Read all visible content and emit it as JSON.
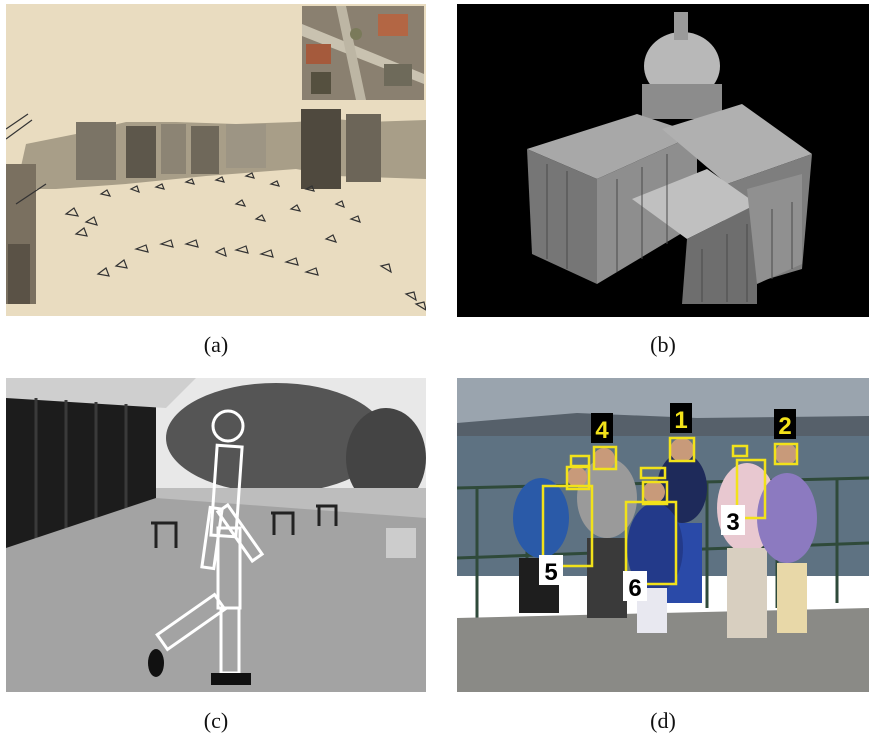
{
  "figure": {
    "panels": [
      {
        "id": "a",
        "caption": "(a)",
        "content": "reconstruction-point-cloud-with-camera-frusta"
      },
      {
        "id": "b",
        "caption": "(b)",
        "content": "3d-dense-model-of-cathedral"
      },
      {
        "id": "c",
        "caption": "(c)",
        "content": "walking-person-with-stick-figure-overlay"
      },
      {
        "id": "d",
        "caption": "(d)",
        "content": "group-of-children-with-numbered-face-detections"
      }
    ],
    "detections": [
      {
        "label": "1"
      },
      {
        "label": "2"
      },
      {
        "label": "3"
      },
      {
        "label": "4"
      },
      {
        "label": "5"
      },
      {
        "label": "6"
      }
    ],
    "colors": {
      "detection_box": "#f2e21a",
      "sepia_bg": "#e9dcc0",
      "black_bg": "#000000"
    }
  }
}
